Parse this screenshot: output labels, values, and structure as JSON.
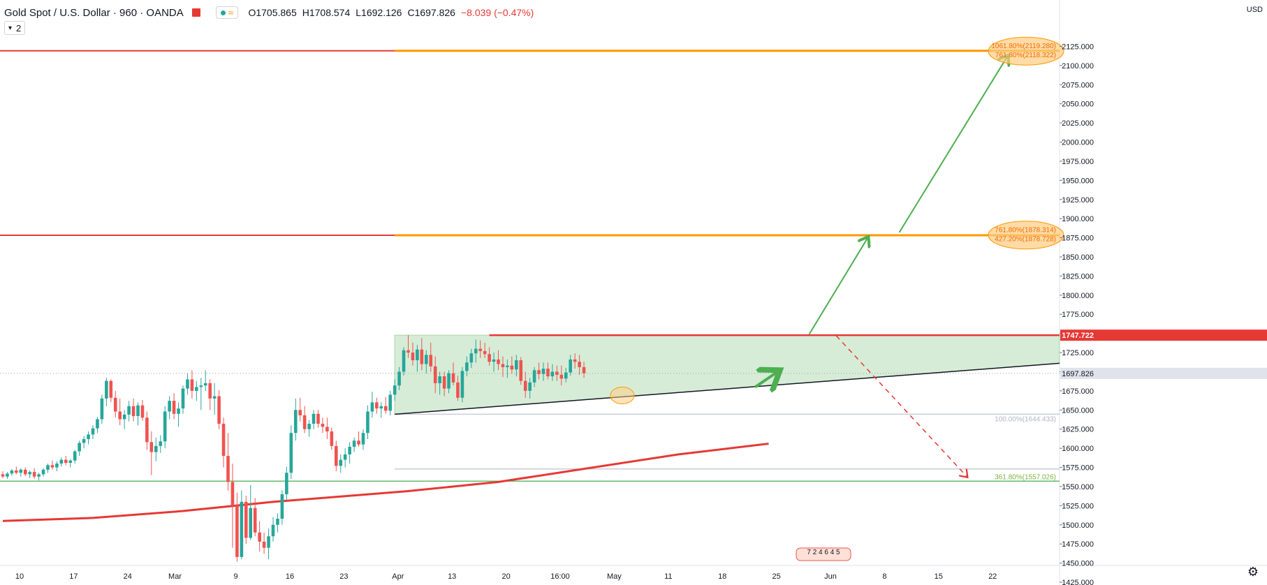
{
  "header": {
    "symbol": "Gold Spot / U.S. Dollar · 960 · OANDA",
    "open_label": "O1705.865",
    "high_label": "H1708.574",
    "low_label": "L1692.126",
    "close_label": "C1697.826",
    "change_label": "−8.039 (−0.47%)",
    "layers_label": "2",
    "currency": "USD"
  },
  "colors": {
    "bull": "#26a69a",
    "bear": "#ef5350",
    "ma": "#e53935",
    "fib_orange": "#ff9800",
    "resistance": "#e53935",
    "support_green": "#66bb6a",
    "zone_fill": "#c8e6c9",
    "arrow_green": "#4caf50",
    "arrow_red": "#e53935",
    "trendline": "#131722"
  },
  "chart_data": {
    "type": "candlestick",
    "title": "Gold Spot / U.S. Dollar, 960, OANDA",
    "ylim": [
      1415,
      2135
    ],
    "y_ticks": [
      1425,
      1450,
      1475,
      1500,
      1525,
      1550,
      1575,
      1600,
      1625,
      1650,
      1675,
      1700,
      1725,
      1750,
      1775,
      1800,
      1825,
      1850,
      1875,
      1900,
      1925,
      1950,
      1975,
      2000,
      2025,
      2050,
      2075,
      2100,
      2125
    ],
    "y_tick_labels": [
      "1425.000",
      "1450.000",
      "1475.000",
      "1500.000",
      "1525.000",
      "1550.000",
      "1575.000",
      "1600.000",
      "1625.000",
      "1650.000",
      "1675.000",
      "1700.000",
      "1725.000",
      "1750.000",
      "1775.000",
      "1800.000",
      "1825.000",
      "1850.000",
      "1875.000",
      "1900.000",
      "1925.000",
      "1950.000",
      "1975.000",
      "2000.000",
      "2025.000",
      "2050.000",
      "2075.000",
      "2100.000",
      "2125.000"
    ],
    "x_tick_labels": [
      "10",
      "17",
      "24",
      "Mar",
      "9",
      "16",
      "23",
      "Apr",
      "13",
      "20",
      "16:00",
      "May",
      "11",
      "18",
      "25",
      "Jun",
      "8",
      "15",
      "22"
    ],
    "x_tick_index": [
      0,
      12,
      24,
      34.5,
      48,
      60,
      72,
      84,
      96,
      108,
      120,
      132,
      144,
      156,
      168,
      180,
      192,
      204,
      216
    ],
    "candles": [
      [
        1566,
        1570,
        1561,
        1563
      ],
      [
        1563,
        1569,
        1560,
        1567
      ],
      [
        1567,
        1573,
        1564,
        1571
      ],
      [
        1571,
        1576,
        1566,
        1568
      ],
      [
        1568,
        1574,
        1563,
        1572
      ],
      [
        1572,
        1575,
        1564,
        1566
      ],
      [
        1566,
        1571,
        1561,
        1569
      ],
      [
        1569,
        1574,
        1560,
        1563
      ],
      [
        1563,
        1568,
        1558,
        1566
      ],
      [
        1566,
        1574,
        1563,
        1572
      ],
      [
        1572,
        1580,
        1568,
        1578
      ],
      [
        1578,
        1584,
        1572,
        1575
      ],
      [
        1575,
        1583,
        1570,
        1580
      ],
      [
        1580,
        1588,
        1576,
        1585
      ],
      [
        1585,
        1590,
        1578,
        1581
      ],
      [
        1581,
        1586,
        1575,
        1584
      ],
      [
        1584,
        1598,
        1580,
        1596
      ],
      [
        1596,
        1610,
        1590,
        1607
      ],
      [
        1607,
        1616,
        1600,
        1612
      ],
      [
        1612,
        1622,
        1605,
        1618
      ],
      [
        1618,
        1630,
        1612,
        1626
      ],
      [
        1626,
        1641,
        1620,
        1638
      ],
      [
        1638,
        1670,
        1632,
        1665
      ],
      [
        1665,
        1692,
        1655,
        1688
      ],
      [
        1688,
        1690,
        1660,
        1666
      ],
      [
        1666,
        1675,
        1640,
        1648
      ],
      [
        1648,
        1665,
        1630,
        1638
      ],
      [
        1638,
        1650,
        1625,
        1644
      ],
      [
        1644,
        1662,
        1635,
        1655
      ],
      [
        1655,
        1665,
        1635,
        1642
      ],
      [
        1642,
        1660,
        1630,
        1656
      ],
      [
        1656,
        1663,
        1636,
        1640
      ],
      [
        1640,
        1648,
        1598,
        1608
      ],
      [
        1608,
        1622,
        1565,
        1595
      ],
      [
        1595,
        1614,
        1583,
        1603
      ],
      [
        1603,
        1617,
        1594,
        1609
      ],
      [
        1609,
        1655,
        1600,
        1648
      ],
      [
        1648,
        1668,
        1638,
        1662
      ],
      [
        1662,
        1672,
        1638,
        1645
      ],
      [
        1645,
        1660,
        1628,
        1652
      ],
      [
        1652,
        1682,
        1645,
        1678
      ],
      [
        1678,
        1698,
        1670,
        1690
      ],
      [
        1690,
        1702,
        1665,
        1675
      ],
      [
        1675,
        1688,
        1662,
        1680
      ],
      [
        1680,
        1692,
        1650,
        1682
      ],
      [
        1682,
        1702,
        1675,
        1685
      ],
      [
        1685,
        1690,
        1650,
        1665
      ],
      [
        1665,
        1685,
        1644,
        1668
      ],
      [
        1668,
        1676,
        1625,
        1632
      ],
      [
        1632,
        1640,
        1575,
        1590
      ],
      [
        1590,
        1620,
        1545,
        1556
      ],
      [
        1556,
        1580,
        1470,
        1525
      ],
      [
        1525,
        1542,
        1452,
        1458
      ],
      [
        1458,
        1545,
        1455,
        1530
      ],
      [
        1530,
        1538,
        1475,
        1483
      ],
      [
        1483,
        1552,
        1480,
        1522
      ],
      [
        1522,
        1535,
        1485,
        1490
      ],
      [
        1490,
        1505,
        1465,
        1478
      ],
      [
        1478,
        1490,
        1462,
        1470
      ],
      [
        1470,
        1495,
        1455,
        1485
      ],
      [
        1485,
        1510,
        1478,
        1500
      ],
      [
        1500,
        1515,
        1490,
        1508
      ],
      [
        1508,
        1545,
        1500,
        1540
      ],
      [
        1540,
        1576,
        1532,
        1568
      ],
      [
        1568,
        1630,
        1560,
        1620
      ],
      [
        1620,
        1665,
        1610,
        1650
      ],
      [
        1650,
        1666,
        1635,
        1643
      ],
      [
        1643,
        1655,
        1620,
        1625
      ],
      [
        1625,
        1637,
        1615,
        1632
      ],
      [
        1632,
        1650,
        1625,
        1645
      ],
      [
        1645,
        1650,
        1627,
        1632
      ],
      [
        1632,
        1640,
        1620,
        1628
      ],
      [
        1628,
        1640,
        1612,
        1622
      ],
      [
        1622,
        1627,
        1598,
        1603
      ],
      [
        1603,
        1610,
        1570,
        1577
      ],
      [
        1577,
        1592,
        1568,
        1585
      ],
      [
        1585,
        1600,
        1575,
        1592
      ],
      [
        1592,
        1608,
        1580,
        1602
      ],
      [
        1602,
        1614,
        1595,
        1610
      ],
      [
        1610,
        1622,
        1602,
        1605
      ],
      [
        1605,
        1625,
        1598,
        1620
      ],
      [
        1620,
        1656,
        1612,
        1648
      ],
      [
        1648,
        1674,
        1640,
        1660
      ],
      [
        1660,
        1666,
        1645,
        1652
      ],
      [
        1652,
        1660,
        1640,
        1655
      ],
      [
        1655,
        1667,
        1645,
        1649
      ],
      [
        1649,
        1675,
        1643,
        1670
      ],
      [
        1670,
        1690,
        1662,
        1682
      ],
      [
        1682,
        1706,
        1676,
        1700
      ],
      [
        1700,
        1732,
        1695,
        1728
      ],
      [
        1728,
        1748,
        1718,
        1725
      ],
      [
        1725,
        1738,
        1708,
        1715
      ],
      [
        1715,
        1735,
        1700,
        1729
      ],
      [
        1729,
        1744,
        1702,
        1710
      ],
      [
        1710,
        1728,
        1698,
        1722
      ],
      [
        1722,
        1738,
        1700,
        1707
      ],
      [
        1707,
        1720,
        1672,
        1685
      ],
      [
        1685,
        1700,
        1670,
        1694
      ],
      [
        1694,
        1700,
        1668,
        1678
      ],
      [
        1678,
        1702,
        1672,
        1698
      ],
      [
        1698,
        1712,
        1682,
        1686
      ],
      [
        1686,
        1695,
        1662,
        1666
      ],
      [
        1666,
        1706,
        1660,
        1701
      ],
      [
        1701,
        1720,
        1694,
        1712
      ],
      [
        1712,
        1730,
        1705,
        1724
      ],
      [
        1724,
        1742,
        1712,
        1730
      ],
      [
        1730,
        1741,
        1718,
        1727
      ],
      [
        1727,
        1738,
        1718,
        1723
      ],
      [
        1723,
        1732,
        1708,
        1713
      ],
      [
        1713,
        1725,
        1700,
        1716
      ],
      [
        1716,
        1728,
        1702,
        1710
      ],
      [
        1710,
        1720,
        1693,
        1706
      ],
      [
        1706,
        1716,
        1692,
        1708
      ],
      [
        1708,
        1720,
        1697,
        1703
      ],
      [
        1703,
        1722,
        1694,
        1715
      ],
      [
        1715,
        1719,
        1683,
        1688
      ],
      [
        1688,
        1700,
        1666,
        1675
      ],
      [
        1675,
        1692,
        1665,
        1686
      ],
      [
        1686,
        1706,
        1680,
        1702
      ],
      [
        1702,
        1712,
        1690,
        1697
      ],
      [
        1697,
        1712,
        1688,
        1704
      ],
      [
        1704,
        1712,
        1690,
        1694
      ],
      [
        1694,
        1710,
        1688,
        1700
      ],
      [
        1700,
        1708,
        1688,
        1696
      ],
      [
        1696,
        1708,
        1682,
        1691
      ],
      [
        1691,
        1705,
        1686,
        1699
      ],
      [
        1699,
        1722,
        1695,
        1716
      ],
      [
        1716,
        1724,
        1704,
        1713
      ],
      [
        1713,
        1722,
        1696,
        1706
      ],
      [
        1706,
        1713,
        1692,
        1698
      ]
    ],
    "ma_200": [
      [
        0,
        1505
      ],
      [
        20,
        1509
      ],
      [
        40,
        1518
      ],
      [
        60,
        1530
      ],
      [
        75,
        1537
      ],
      [
        90,
        1544
      ],
      [
        110,
        1556
      ],
      [
        130,
        1574
      ],
      [
        150,
        1592
      ],
      [
        170,
        1606
      ]
    ],
    "fib_levels": [
      {
        "label": "1061.80%(2119.280)",
        "value": 2119.28
      },
      {
        "label": "761.80%(2118.322)",
        "value": 2118.322
      },
      {
        "label": "761.80%(1878.314)",
        "value": 1878.314
      },
      {
        "label": "427.20%(1878.728)",
        "value": 1878.728
      },
      {
        "label": "100.00%(1644.433)",
        "value": 1644.433
      },
      {
        "label": "361.80%(1557.026)",
        "value": 1557.026
      }
    ],
    "price_labels": {
      "resistance": "1747.722",
      "resistance_value": 1747.722,
      "last": "1697.826",
      "last_value": 1697.826
    },
    "fib_extra_value": 1573,
    "resistance_line_value": 1747.722,
    "support_line_value": 1557.026,
    "red_hline_value": 1878.314,
    "top_red_hline_value": 2119.28,
    "zone": {
      "top": 1747.722,
      "bottom_left": 1644.433
    },
    "trendline": [
      [
        87,
        1644.433
      ],
      [
        250,
        1711
      ]
    ],
    "green_arrows": [
      [
        [
          167,
          1680
        ],
        [
          172,
          1700
        ]
      ],
      [
        [
          179,
          1749
        ],
        [
          192,
          1875
        ]
      ],
      [
        [
          199,
          1882
        ],
        [
          223,
          2112
        ]
      ]
    ],
    "red_arrow": [
      [
        185,
        1747
      ],
      [
        214,
        1563
      ]
    ],
    "event_markers": "7 2 4 6 4 5"
  }
}
